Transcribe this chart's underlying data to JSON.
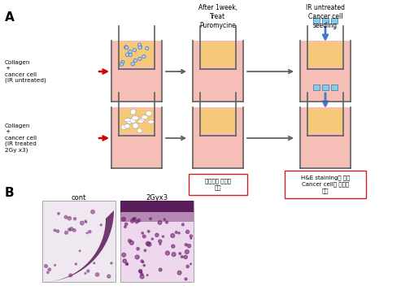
{
  "fig_width": 5.09,
  "fig_height": 3.68,
  "dpi": 100,
  "bg_color": "#ffffff",
  "panel_a_label": "A",
  "panel_b_label": "B",
  "top_label1": "After 1week,\nTreat\nPuromycine",
  "top_label2": "IR untreated\nCancer cell\nseeding",
  "left_label_row1": "Collagen\n+\ncancer cell\n(IR untreated)",
  "left_label_row2": "Collagen\n+\ncancer cell\n(IR treated\n2Gy x3)",
  "red_box1_text": "세포외질 재배열\n발생",
  "red_box2_text": "H&E staining을 통해\nCancer cell의 이동성\n확인",
  "micro_label1": "cont",
  "micro_label2": "2Gyx3",
  "pink_color": "#f5bfb8",
  "orange_color": "#f5c87a",
  "red_arrow_color": "#cc0000",
  "blue_arrow_color": "#4477cc",
  "cyan_rect_color": "#88ccdd",
  "red_box_color": "#cc2222",
  "blue_cell_color": "#aaccee",
  "wall_color": "#606060"
}
